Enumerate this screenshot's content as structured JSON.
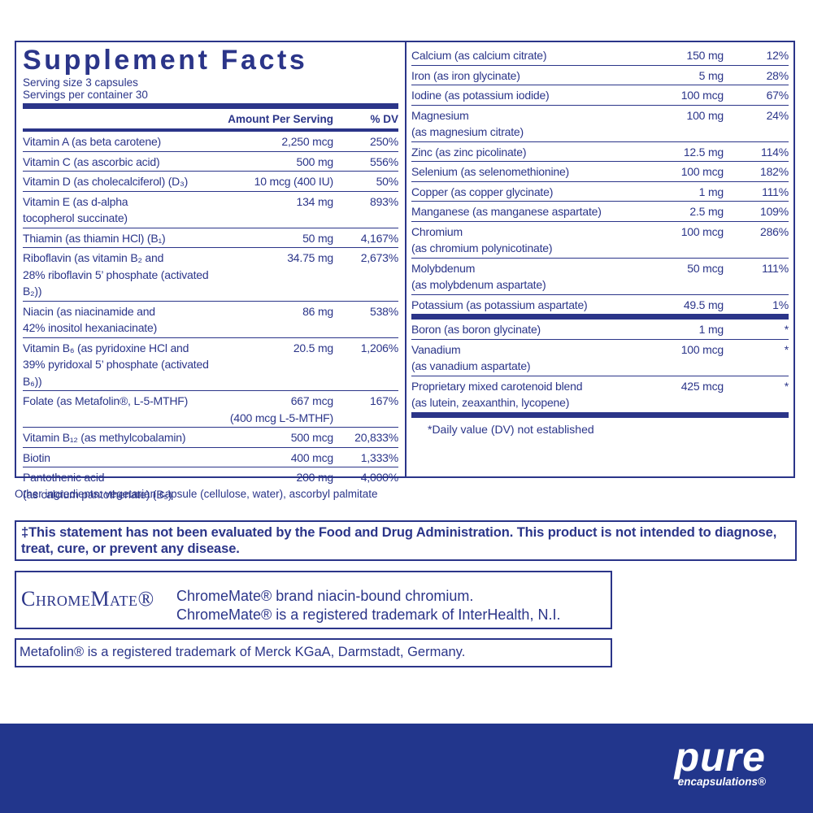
{
  "title": "Supplement Facts",
  "serving_size": "Serving size  3 capsules",
  "servings_per_container": "Servings per container  30",
  "headers": {
    "amount": "Amount Per Serving",
    "dv": "% DV"
  },
  "left_rows": [
    {
      "name": [
        "Vitamin A (as beta carotene)"
      ],
      "amount": [
        "2,250 mcg"
      ],
      "dv": "250%"
    },
    {
      "name": [
        "Vitamin C (as ascorbic acid)"
      ],
      "amount": [
        "500 mg"
      ],
      "dv": "556%"
    },
    {
      "name": [
        "Vitamin D  (as cholecalciferol) (D₃)"
      ],
      "amount": [
        "10 mcg (400 IU)"
      ],
      "dv": "50%"
    },
    {
      "name": [
        "Vitamin E (as d-alpha",
        "tocopherol succinate)"
      ],
      "amount": [
        "134 mg"
      ],
      "dv": "893%"
    },
    {
      "name": [
        "Thiamin (as thiamin HCl) (B₁)"
      ],
      "amount": [
        "50 mg"
      ],
      "dv": "4,167%"
    },
    {
      "name": [
        "Riboflavin (as vitamin B₂ and",
        "28% riboflavin 5’ phosphate (activated B₂))"
      ],
      "amount": [
        "34.75 mg"
      ],
      "dv": "2,673%"
    },
    {
      "name": [
        "Niacin (as niacinamide and",
        "42% inositol hexaniacinate)"
      ],
      "amount": [
        "86 mg"
      ],
      "dv": "538%"
    },
    {
      "name": [
        "Vitamin B₆ (as pyridoxine HCl and",
        "39% pyridoxal 5’ phosphate (activated B₆))"
      ],
      "amount": [
        "20.5 mg"
      ],
      "dv": "1,206%"
    },
    {
      "name": [
        "Folate (as Metafolin®, L-5-MTHF)"
      ],
      "amount": [
        "667 mcg",
        "(400 mcg L-5-MTHF)"
      ],
      "dv": "167%"
    },
    {
      "name": [
        "Vitamin B₁₂ (as methylcobalamin)"
      ],
      "amount": [
        "500 mcg"
      ],
      "dv": "20,833%"
    },
    {
      "name": [
        "Biotin"
      ],
      "amount": [
        "400 mcg"
      ],
      "dv": "1,333%"
    },
    {
      "name": [
        "Pantothenic acid",
        "(as calcium pantothenate) (B₅)"
      ],
      "amount": [
        "200 mg"
      ],
      "dv": "4,000%"
    }
  ],
  "right_groups": [
    [
      {
        "name": [
          "Calcium (as calcium citrate)"
        ],
        "amount": [
          "150 mg"
        ],
        "dv": "12%"
      },
      {
        "name": [
          "Iron (as iron glycinate)"
        ],
        "amount": [
          "5 mg"
        ],
        "dv": "28%"
      },
      {
        "name": [
          "Iodine (as potassium iodide)"
        ],
        "amount": [
          "100 mcg"
        ],
        "dv": "67%"
      },
      {
        "name": [
          "Magnesium",
          "(as magnesium citrate)"
        ],
        "amount": [
          "100 mg"
        ],
        "dv": "24%"
      },
      {
        "name": [
          "Zinc (as zinc picolinate)"
        ],
        "amount": [
          "12.5 mg"
        ],
        "dv": "114%"
      },
      {
        "name": [
          "Selenium (as selenomethionine)"
        ],
        "amount": [
          "100 mcg"
        ],
        "dv": "182%"
      },
      {
        "name": [
          "Copper (as copper glycinate)"
        ],
        "amount": [
          "1 mg"
        ],
        "dv": "111%"
      },
      {
        "name": [
          "Manganese (as manganese aspartate)"
        ],
        "amount": [
          "2.5 mg"
        ],
        "dv": "109%"
      },
      {
        "name": [
          "Chromium",
          "(as chromium polynicotinate)"
        ],
        "amount": [
          "100 mcg"
        ],
        "dv": "286%"
      },
      {
        "name": [
          "Molybdenum",
          "(as molybdenum aspartate)"
        ],
        "amount": [
          "50 mcg"
        ],
        "dv": "111%"
      },
      {
        "name": [
          "Potassium (as potassium aspartate)"
        ],
        "amount": [
          "49.5 mg"
        ],
        "dv": "1%"
      }
    ],
    [
      {
        "name": [
          "Boron (as boron glycinate)"
        ],
        "amount": [
          "1 mg"
        ],
        "dv": "*"
      },
      {
        "name": [
          "Vanadium",
          "(as vanadium aspartate)"
        ],
        "amount": [
          "100 mcg"
        ],
        "dv": "*"
      },
      {
        "name": [
          "Proprietary mixed carotenoid blend",
          "(as lutein, zeaxanthin, lycopene)"
        ],
        "amount": [
          "425 mcg"
        ],
        "dv": "*"
      }
    ]
  ],
  "footnote": "*Daily value (DV) not established",
  "other_ingredients": "Other ingredients: vegetarian capsule (cellulose, water), ascorbyl palmitate",
  "disclaimer": "‡This statement has not been evaluated by the Food and Drug Administration. This product is not intended to diagnose, treat, cure, or prevent any disease.",
  "chromemate": {
    "logo": "ChromeMate®",
    "line1": "ChromeMate® brand niacin-bound chromium.",
    "line2": "ChromeMate® is a registered trademark of InterHealth, N.I."
  },
  "metafolin": "Metafolin® is a registered trademark of Merck KGaA, Darmstadt, Germany.",
  "brand": {
    "name": "pure",
    "sub": "encapsulations®"
  }
}
